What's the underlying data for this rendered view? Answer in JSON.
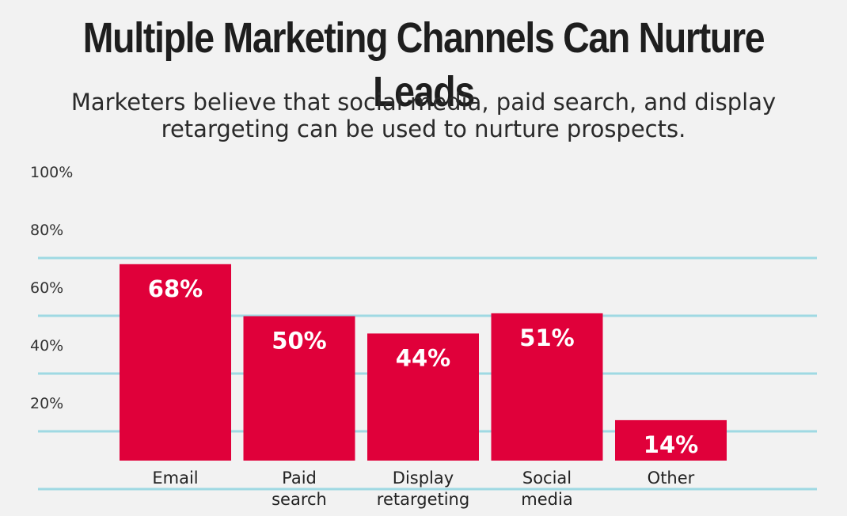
{
  "title": "Multiple Marketing Channels Can Nurture Leads",
  "subtitle": "Marketers believe that social media, paid search, and display retargeting can be used to nurture prospects.",
  "colors": {
    "bar": "#e0003a",
    "gridline": "#9fd9e3",
    "background": "#f2f2f2"
  },
  "chart_data": {
    "type": "bar",
    "title": "Multiple Marketing Channels Can Nurture Leads",
    "subtitle": "Marketers believe that social media, paid search, and display retargeting can be used to nurture prospects.",
    "categories": [
      [
        "Email"
      ],
      [
        "Paid",
        "search"
      ],
      [
        "Display",
        "retargeting"
      ],
      [
        "Social",
        "media"
      ],
      [
        "Other"
      ]
    ],
    "values": [
      68,
      50,
      44,
      51,
      14
    ],
    "data_labels": [
      "68%",
      "50%",
      "44%",
      "51%",
      "14%"
    ],
    "y_ticks": [
      {
        "value": 100,
        "label": "100%",
        "gridline": false
      },
      {
        "value": 80,
        "label": "80%",
        "gridline": true
      },
      {
        "value": 60,
        "label": "60%",
        "gridline": true
      },
      {
        "value": 40,
        "label": "40%",
        "gridline": true
      },
      {
        "value": 20,
        "label": "20%",
        "gridline": true
      },
      {
        "value": 0,
        "label": "",
        "gridline": true
      }
    ],
    "ylim": [
      0,
      100
    ],
    "grid": true,
    "legend": "none",
    "xlabel": "",
    "ylabel": ""
  }
}
